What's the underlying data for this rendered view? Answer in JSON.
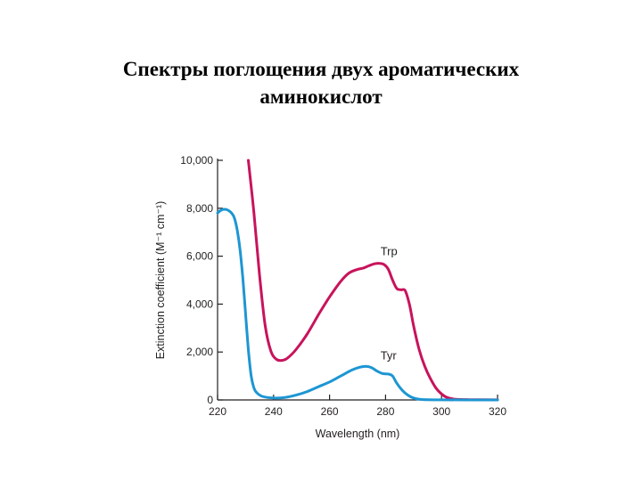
{
  "slide": {
    "title_line1": "Спектры поглощения двух ароматических",
    "title_line2": "аминокислот"
  },
  "chart_data": {
    "type": "line",
    "title": "",
    "xlabel": "Wavelength (nm)",
    "ylabel": "Extinction coefficient (M⁻¹ cm⁻¹)",
    "xlim": [
      220,
      320
    ],
    "ylim": [
      0,
      10000
    ],
    "x_ticks": [
      220,
      240,
      260,
      280,
      300,
      320
    ],
    "x_tick_labels": [
      "220",
      "240",
      "260",
      "280",
      "300",
      "320"
    ],
    "y_ticks": [
      0,
      2000,
      4000,
      6000,
      8000,
      10000
    ],
    "y_tick_labels": [
      "0",
      "2,000",
      "4,000",
      "6,000",
      "8,000",
      "10,000"
    ],
    "grid": false,
    "series": [
      {
        "name": "Trp",
        "color": "#c8135c",
        "label_at": [
          275,
          6050
        ],
        "points": [
          [
            231,
            10000
          ],
          [
            233,
            7800
          ],
          [
            235,
            5200
          ],
          [
            237,
            3100
          ],
          [
            239,
            2050
          ],
          [
            241,
            1700
          ],
          [
            243,
            1650
          ],
          [
            245,
            1750
          ],
          [
            248,
            2100
          ],
          [
            252,
            2750
          ],
          [
            256,
            3550
          ],
          [
            260,
            4300
          ],
          [
            264,
            4950
          ],
          [
            267,
            5300
          ],
          [
            270,
            5450
          ],
          [
            272,
            5500
          ],
          [
            274,
            5600
          ],
          [
            276,
            5680
          ],
          [
            278,
            5700
          ],
          [
            279.5,
            5650
          ],
          [
            281,
            5450
          ],
          [
            282.5,
            5000
          ],
          [
            284,
            4650
          ],
          [
            285.5,
            4600
          ],
          [
            287,
            4560
          ],
          [
            288.5,
            4000
          ],
          [
            290,
            3100
          ],
          [
            292,
            2100
          ],
          [
            294,
            1400
          ],
          [
            296,
            900
          ],
          [
            298,
            500
          ],
          [
            300,
            250
          ],
          [
            302,
            100
          ],
          [
            305,
            30
          ],
          [
            310,
            10
          ],
          [
            320,
            5
          ]
        ]
      },
      {
        "name": "Tyr",
        "color": "#1d96d3",
        "label_at": [
          275,
          1700
        ],
        "points": [
          [
            220,
            7800
          ],
          [
            221,
            7900
          ],
          [
            222,
            7950
          ],
          [
            223,
            7950
          ],
          [
            224,
            7900
          ],
          [
            225,
            7800
          ],
          [
            226,
            7600
          ],
          [
            227,
            7100
          ],
          [
            228,
            6300
          ],
          [
            229,
            5100
          ],
          [
            230,
            3600
          ],
          [
            231,
            2100
          ],
          [
            232,
            1000
          ],
          [
            233,
            500
          ],
          [
            234,
            300
          ],
          [
            236,
            150
          ],
          [
            240,
            80
          ],
          [
            244,
            100
          ],
          [
            248,
            200
          ],
          [
            252,
            350
          ],
          [
            256,
            550
          ],
          [
            260,
            750
          ],
          [
            264,
            1000
          ],
          [
            268,
            1250
          ],
          [
            271,
            1370
          ],
          [
            273,
            1400
          ],
          [
            275,
            1350
          ],
          [
            277,
            1200
          ],
          [
            279,
            1100
          ],
          [
            281,
            1080
          ],
          [
            282.5,
            1000
          ],
          [
            284,
            700
          ],
          [
            286,
            400
          ],
          [
            288,
            200
          ],
          [
            290,
            80
          ],
          [
            293,
            20
          ],
          [
            300,
            5
          ],
          [
            320,
            0
          ]
        ]
      }
    ]
  }
}
